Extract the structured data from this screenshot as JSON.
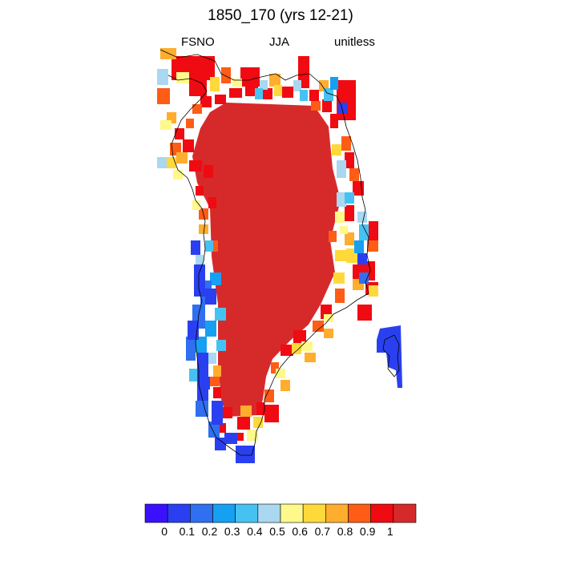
{
  "title": "1850_170 (yrs 12-21)",
  "subtitle": {
    "left": "FSNO",
    "center": "JJA",
    "right": "unitless"
  },
  "colorbar": {
    "colors": [
      "#3b10ff",
      "#2a40f0",
      "#2f6ff0",
      "#16a0f2",
      "#46c2f2",
      "#a9d8f0",
      "#fff88a",
      "#ffd93a",
      "#ffad2e",
      "#ff5c16",
      "#f00a12",
      "#d62a2a"
    ],
    "tick_labels": [
      "0",
      "0.1",
      "0.2",
      "0.3",
      "0.4",
      "0.5",
      "0.6",
      "0.7",
      "0.8",
      "0.9",
      "1"
    ]
  }
}
